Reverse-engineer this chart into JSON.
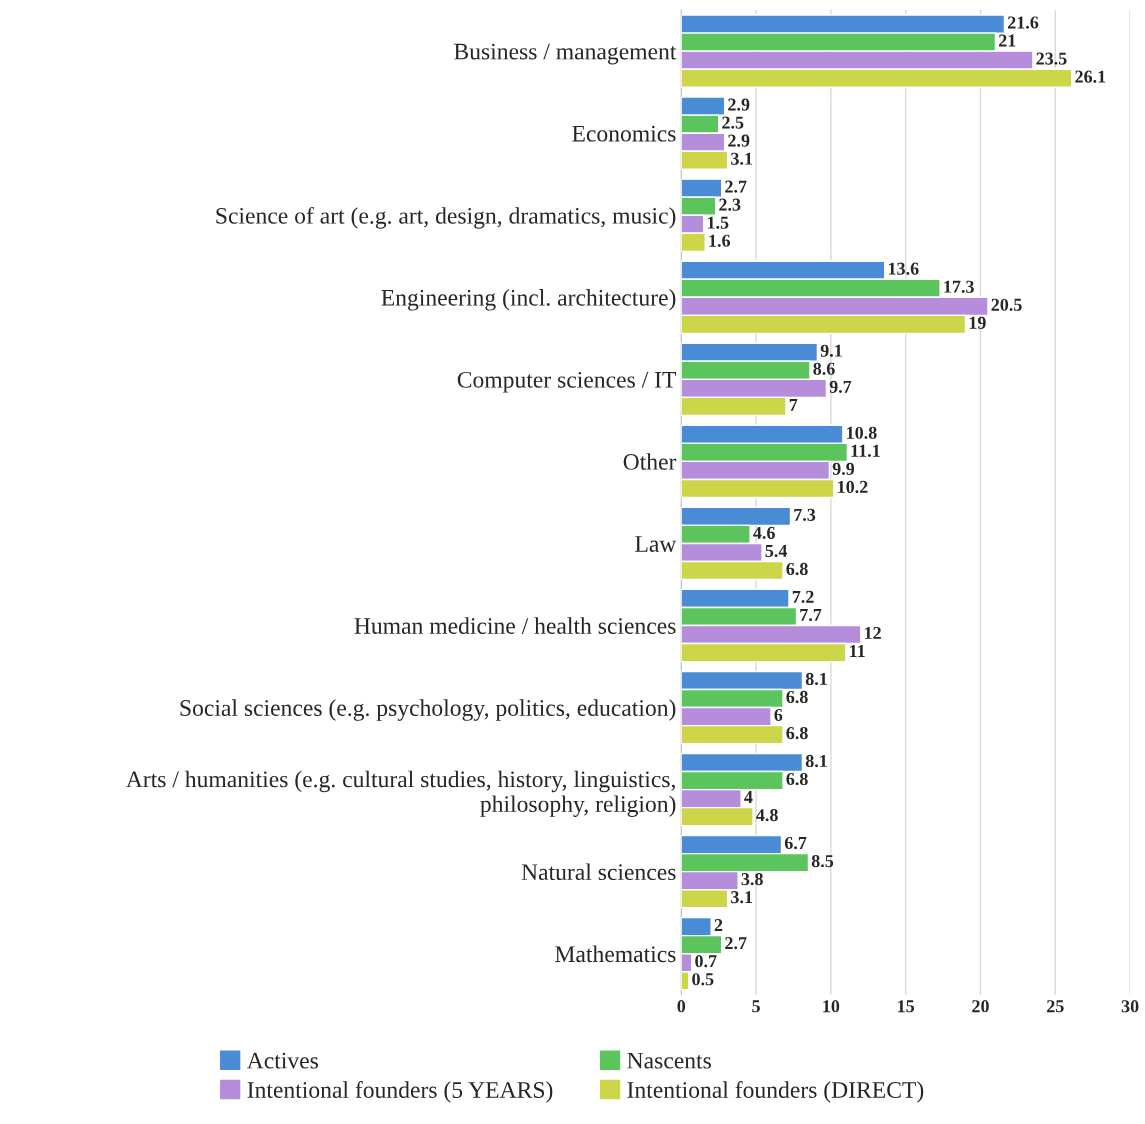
{
  "chart_data": {
    "type": "bar",
    "orientation": "horizontal",
    "categories": [
      "Business / management",
      "Economics",
      "Science of art (e.g. art, design, dramatics, music)",
      "Engineering (incl. architecture)",
      "Computer sciences / IT",
      "Other",
      "Law",
      "Human medicine / health sciences",
      "Social sciences (e.g. psychology, politics, education)",
      "Arts / humanities (e.g. cultural studies, history, linguistics,\nphilosophy, religion)",
      "Natural sciences",
      "Mathematics"
    ],
    "series": [
      {
        "name": "Actives",
        "color": "#4a8bd6",
        "values": [
          21.6,
          2.9,
          2.7,
          13.6,
          9.1,
          10.8,
          7.3,
          7.2,
          8.1,
          8.1,
          6.7,
          2
        ]
      },
      {
        "name": "Nascents",
        "color": "#5cc45c",
        "values": [
          21,
          2.5,
          2.3,
          17.3,
          8.6,
          11.1,
          4.6,
          7.7,
          6.8,
          6.8,
          8.5,
          2.7
        ]
      },
      {
        "name": "Intentional founders (5 YEARS)",
        "color": "#b58ddb",
        "values": [
          23.5,
          2.9,
          1.5,
          20.5,
          9.7,
          9.9,
          5.4,
          12,
          6,
          4,
          3.8,
          0.7
        ]
      },
      {
        "name": "Intentional founders (DIRECT)",
        "color": "#cdd648",
        "values": [
          26.1,
          3.1,
          1.6,
          19,
          7,
          10.2,
          6.8,
          11,
          6.8,
          4.8,
          3.1,
          0.5
        ]
      }
    ],
    "xlim": [
      0,
      30
    ],
    "xticks": [
      0,
      5,
      10,
      15,
      20,
      25,
      30
    ],
    "grid": "x",
    "legend": "bottom",
    "data_labels": true
  }
}
